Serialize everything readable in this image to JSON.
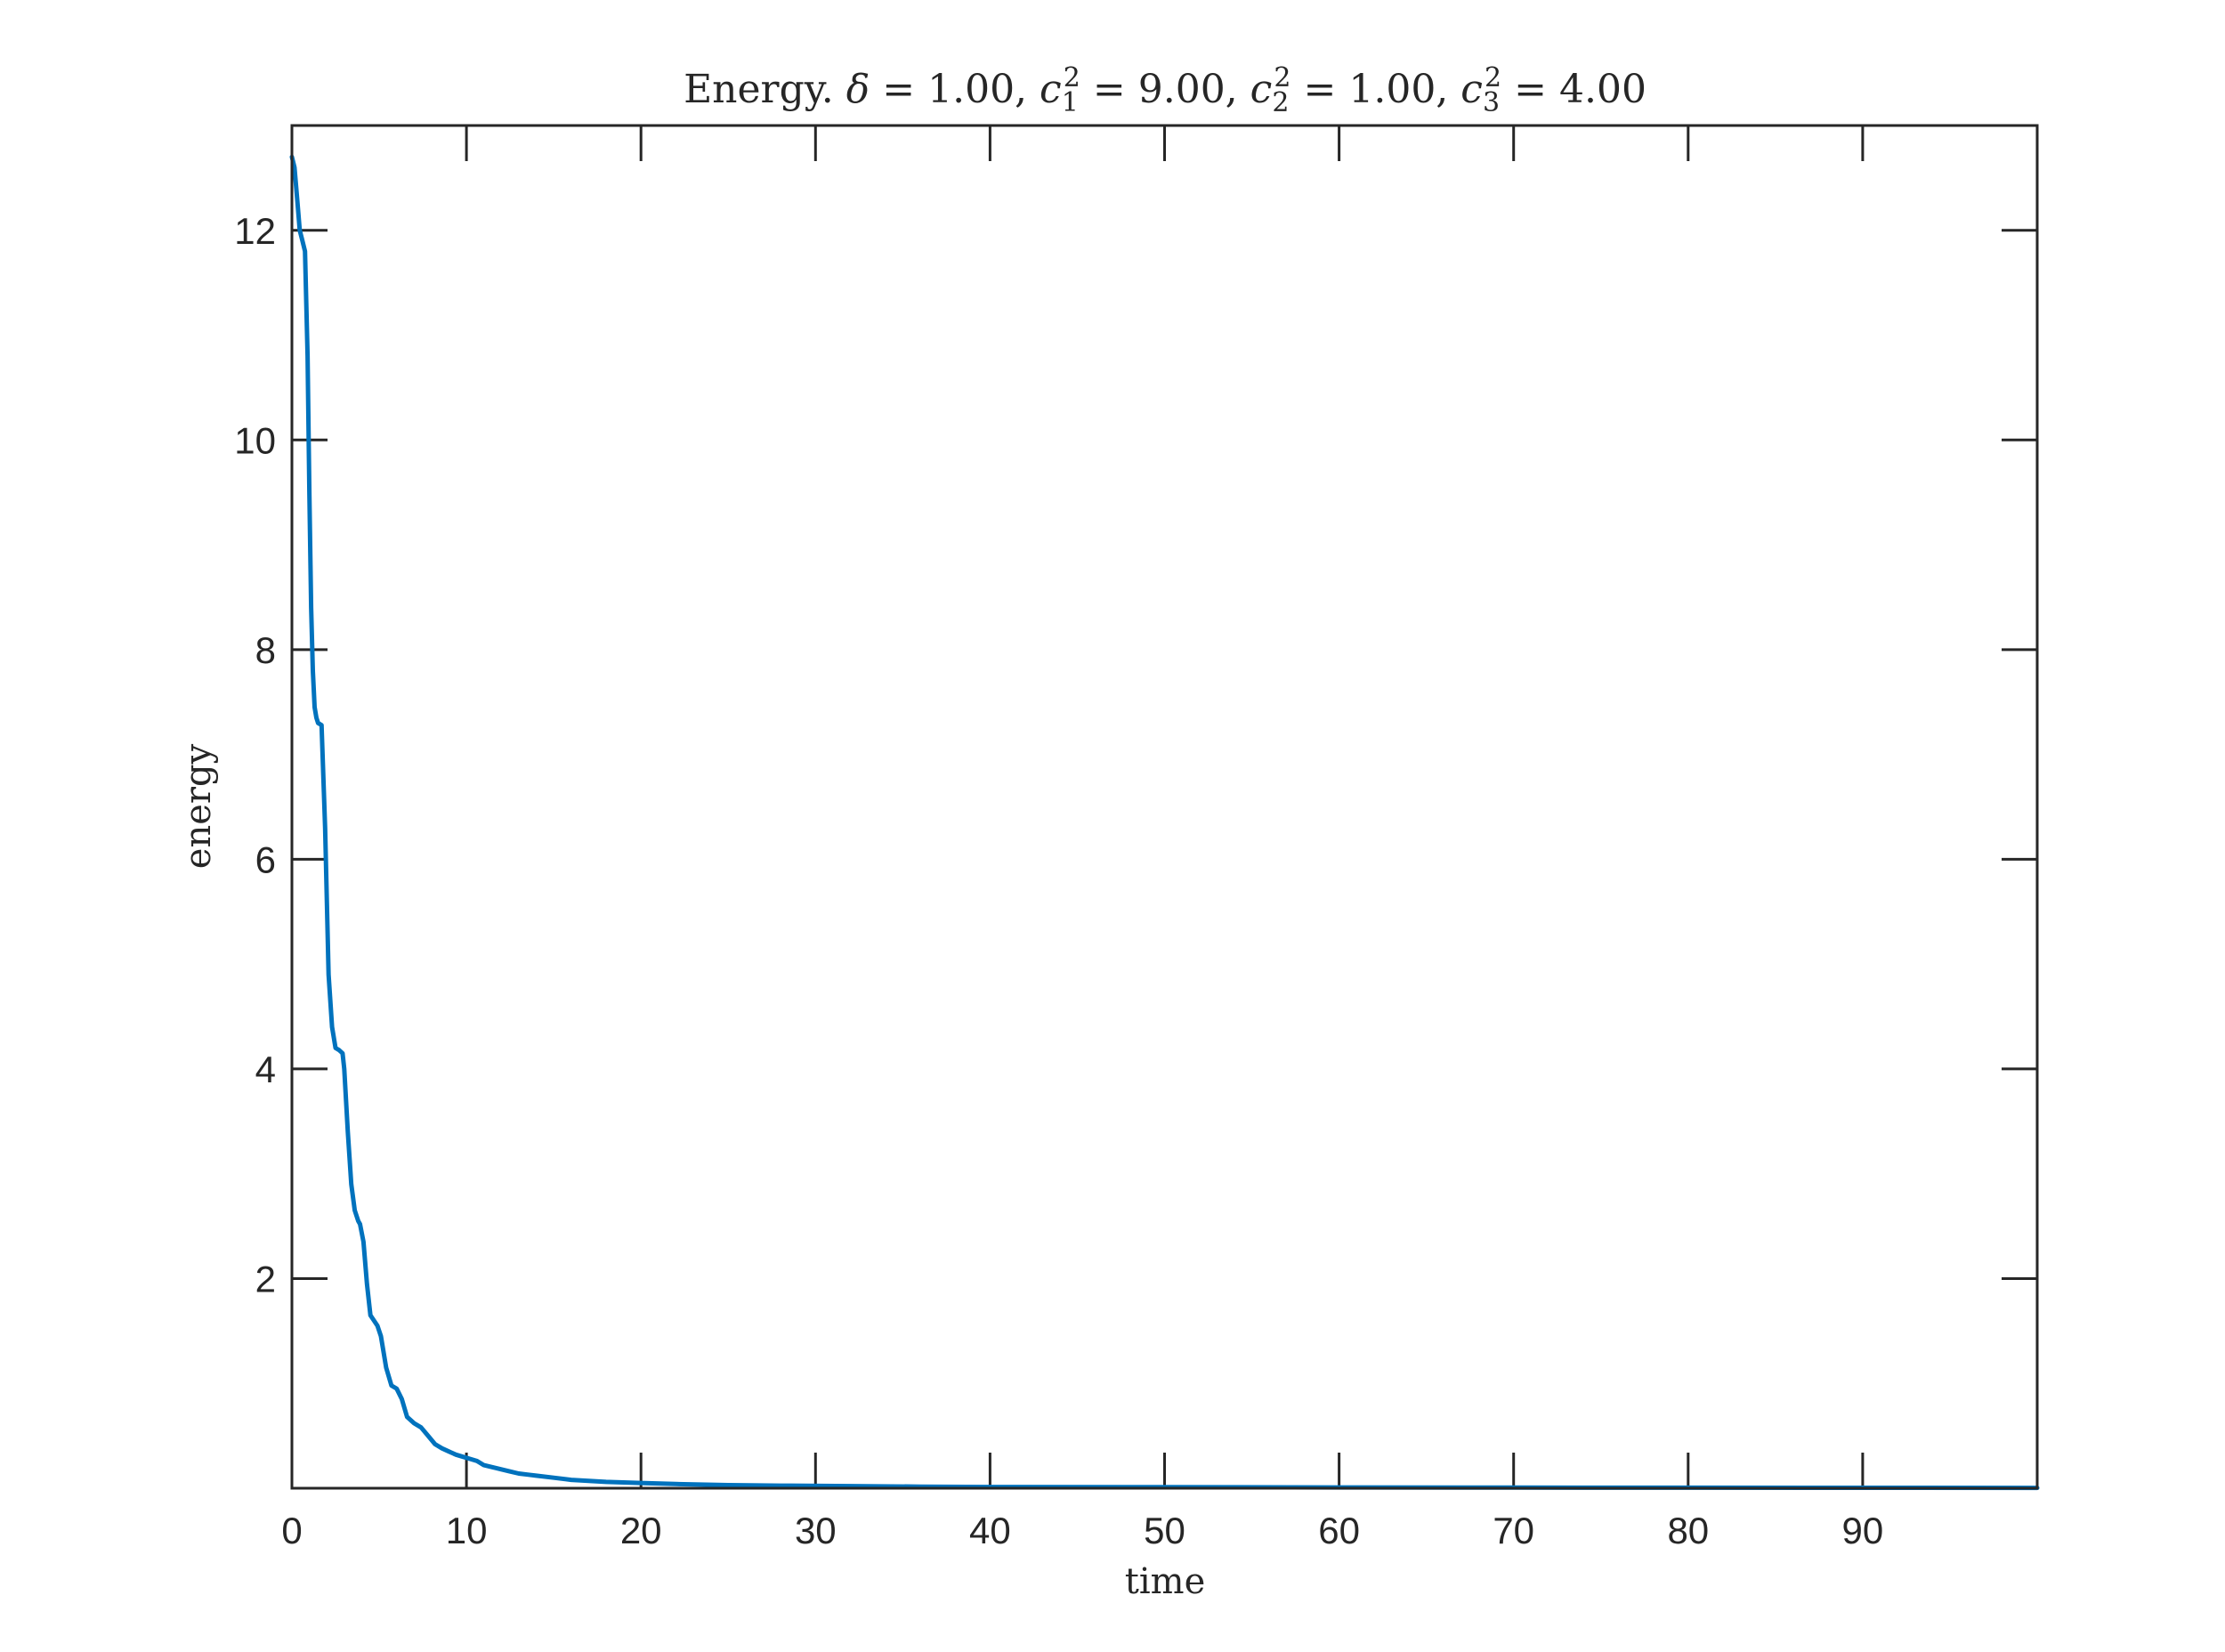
{
  "chart_data": {
    "type": "line",
    "title": {
      "parts": [
        {
          "text": "Energy.  ",
          "style": "roman"
        },
        {
          "text": "δ",
          "style": "math"
        },
        {
          "text": " = 1.00, ",
          "style": "roman"
        },
        {
          "text": "c",
          "style": "math"
        },
        {
          "text": "1",
          "style": "sub"
        },
        {
          "text": "2",
          "style": "sup"
        },
        {
          "text": " = 9.00, ",
          "style": "roman"
        },
        {
          "text": "c",
          "style": "math"
        },
        {
          "text": "2",
          "style": "sub"
        },
        {
          "text": "2",
          "style": "sup"
        },
        {
          "text": " = 1.00, ",
          "style": "roman"
        },
        {
          "text": "c",
          "style": "math"
        },
        {
          "text": "3",
          "style": "sub"
        },
        {
          "text": "2",
          "style": "sup"
        },
        {
          "text": " = 4.00",
          "style": "roman"
        }
      ]
    },
    "xlabel": "time",
    "ylabel": "energy",
    "xlim": [
      0,
      100
    ],
    "ylim": [
      0,
      13
    ],
    "xticks": [
      0,
      10,
      20,
      30,
      40,
      50,
      60,
      70,
      80,
      90
    ],
    "yticks": [
      2,
      4,
      6,
      8,
      10,
      12
    ],
    "grid": false,
    "line_color": "#0072BD",
    "series": [
      {
        "x": [
          0,
          0.15,
          0.3,
          0.45,
          0.6,
          0.75,
          0.9,
          1.0,
          1.1,
          1.2,
          1.3,
          1.4,
          1.5,
          1.7,
          1.9,
          2.1,
          2.3,
          2.5,
          2.7,
          2.9,
          3.0,
          3.2,
          3.4,
          3.6,
          3.8,
          3.9,
          4.1,
          4.3,
          4.5,
          4.7,
          4.9,
          5.1,
          5.4,
          5.7,
          6.0,
          6.3,
          6.6,
          7.0,
          7.4,
          7.8,
          8.2,
          8.6,
          9.0,
          9.4,
          9.8,
          10.2,
          10.6,
          11.0,
          11.5,
          12.0,
          12.5,
          13.0,
          13.5,
          14.0,
          15,
          16,
          17,
          18,
          20,
          22,
          25,
          28,
          32,
          36,
          40,
          50,
          60,
          70,
          80,
          90,
          100
        ],
        "y": [
          12.7,
          12.6,
          12.3,
          12.0,
          11.9,
          11.8,
          10.8,
          9.5,
          8.4,
          7.8,
          7.45,
          7.35,
          7.3,
          7.28,
          6.3,
          4.9,
          4.4,
          4.2,
          4.18,
          4.15,
          4.0,
          3.4,
          2.9,
          2.65,
          2.55,
          2.52,
          2.35,
          1.95,
          1.65,
          1.6,
          1.55,
          1.45,
          1.15,
          0.98,
          0.95,
          0.85,
          0.68,
          0.62,
          0.58,
          0.5,
          0.42,
          0.38,
          0.35,
          0.32,
          0.3,
          0.28,
          0.26,
          0.22,
          0.2,
          0.18,
          0.16,
          0.14,
          0.13,
          0.12,
          0.1,
          0.08,
          0.07,
          0.06,
          0.05,
          0.04,
          0.03,
          0.025,
          0.02,
          0.015,
          0.012,
          0.01,
          0.008,
          0.006,
          0.005,
          0.004,
          0.003
        ]
      }
    ]
  }
}
